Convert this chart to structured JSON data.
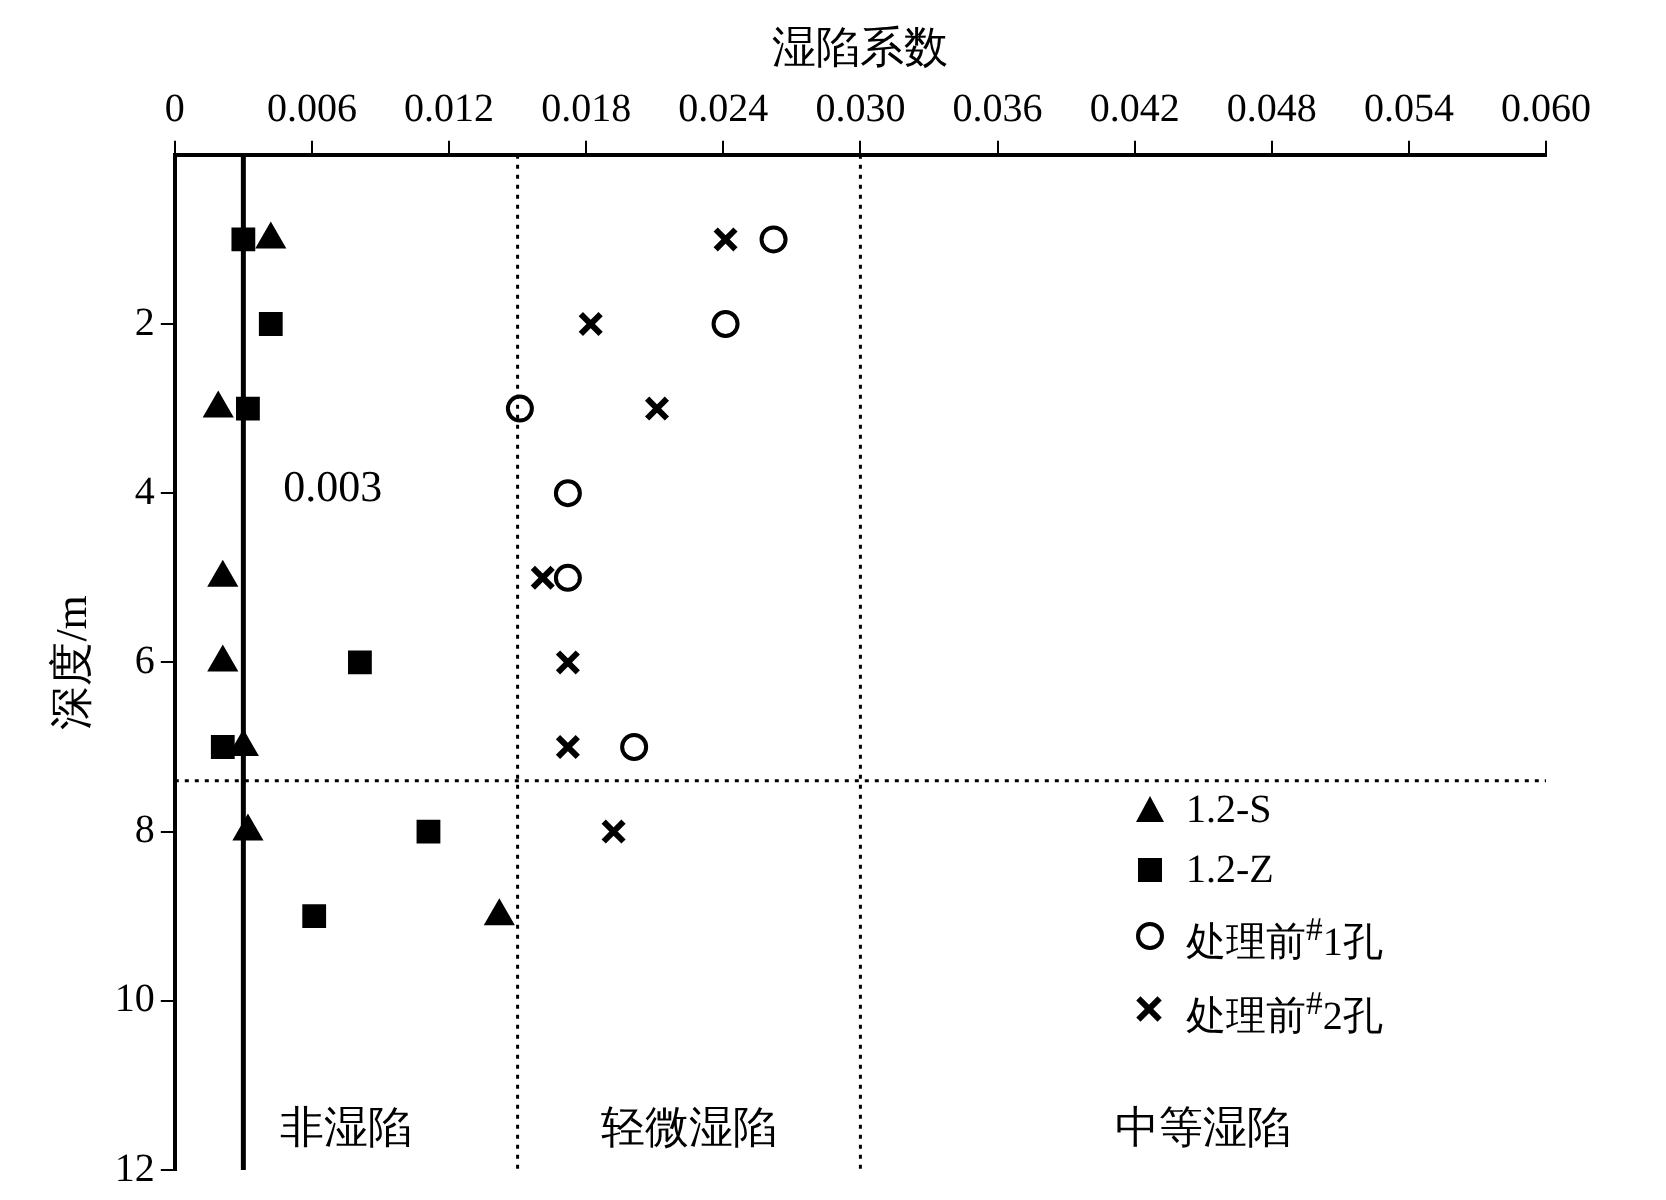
{
  "chart_data": {
    "type": "scatter",
    "xlabel": "湿陷系数",
    "ylabel": "深度/m",
    "xlim": [
      0,
      0.06
    ],
    "xticks": [
      0,
      0.006,
      0.012,
      0.018,
      0.024,
      {
        "value": 0.03,
        "label": "0.030"
      },
      0.036,
      0.042,
      0.048,
      0.054,
      {
        "value": 0.06,
        "label": "0.060"
      }
    ],
    "ylim": [
      12,
      0
    ],
    "yticks": [
      2,
      4,
      6,
      8,
      10,
      12
    ],
    "grid": false,
    "legend": "bottom right",
    "series": [
      {
        "name": "1.2-S",
        "color": "#000000",
        "marker": "triangle",
        "x": [
          0.0042,
          null,
          0.0019,
          0.0021,
          0.0021,
          0.003,
          0.0032,
          0.0142
        ],
        "values": [
          1,
          null,
          3,
          5,
          6,
          7,
          8,
          9
        ]
      },
      {
        "name": "1.2-Z",
        "color": "#000000",
        "marker": "square",
        "x": [
          0.003,
          0.0042,
          0.0032,
          0.0081,
          0.0021,
          0.0111,
          0.0061
        ],
        "values": [
          1,
          2,
          3,
          6,
          7,
          8,
          9
        ]
      },
      {
        "name": "处理前$^{#}$1孔",
        "color": "#000000",
        "marker": "circle",
        "x": [
          0.0262,
          0.0241,
          0.0151,
          0.0172,
          0.0172,
          0.0201
        ],
        "values": [
          1,
          2,
          3,
          4,
          5,
          7
        ]
      },
      {
        "name": "处理前$^{#}$2孔",
        "color": "#000000",
        "marker": "cross",
        "x": [
          0.0241,
          0.0182,
          0.0211,
          0.0161,
          0.0172,
          0.0172,
          0.0192
        ],
        "values": [
          1,
          2,
          3,
          5,
          6,
          7,
          8
        ]
      }
    ],
    "ref_lines": [
      {
        "axis": "x",
        "value": 0.003,
        "label": "0.003",
        "color": "#000000",
        "line_style": "solid"
      },
      {
        "axis": "x",
        "value": 0.015,
        "color": "#000000",
        "line_style": "dotted"
      },
      {
        "axis": "x",
        "value": 0.03,
        "color": "#000000",
        "line_style": "dotted"
      },
      {
        "axis": "y",
        "value": 7.4,
        "color": "#000000",
        "line_style": "dotted"
      }
    ],
    "annotations": [
      "非湿陷",
      "轻微湿陷",
      "中等湿陷"
    ]
  }
}
